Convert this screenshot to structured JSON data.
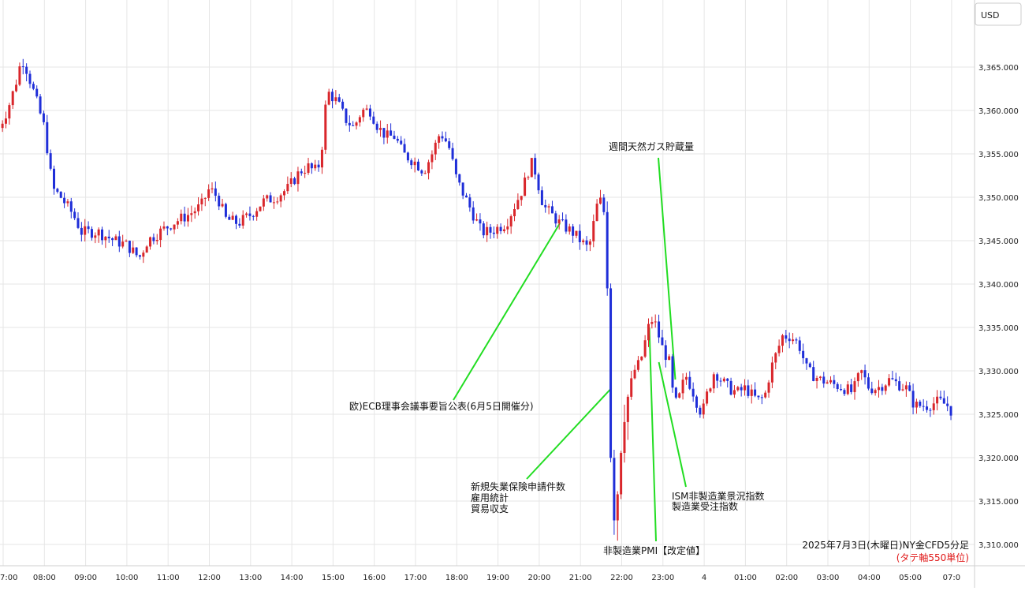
{
  "chart_data": {
    "type": "candlestick",
    "title": "2025年7月3日(木曜日)NY金CFD5分足",
    "subtitle": "(タテ軸550単位)",
    "currency_label": "USD",
    "ylim": [
      3309,
      3371
    ],
    "y_ticks": [
      "3,365.000",
      "3,360.000",
      "3,355.000",
      "3,350.000",
      "3,345.000",
      "3,340.000",
      "3,335.000",
      "3,330.000",
      "3,325.000",
      "3,320.000",
      "3,315.000",
      "3,310.000"
    ],
    "y_tick_values": [
      3365,
      3360,
      3355,
      3350,
      3345,
      3340,
      3335,
      3330,
      3325,
      3320,
      3315,
      3310
    ],
    "x_ticks": [
      "7:00",
      "08:00",
      "09:00",
      "10:00",
      "11:00",
      "12:00",
      "13:00",
      "14:00",
      "15:00",
      "16:00",
      "17:00",
      "18:00",
      "19:00",
      "20:00",
      "21:00",
      "22:00",
      "23:00",
      "4",
      "01:00",
      "02:00",
      "03:00",
      "04:00",
      "05:00",
      "07:0"
    ],
    "x_tick_hours": [
      0,
      1,
      2,
      3,
      4,
      5,
      6,
      7,
      8,
      9,
      10,
      11,
      12,
      13,
      14,
      15,
      16,
      17,
      18,
      19,
      20,
      21,
      22,
      23
    ],
    "colors": {
      "up": "#d9262b",
      "down": "#1f2ed8",
      "annotation_line": "#22dd22",
      "grid": "#e6e6e6",
      "subtitle": "#e01818"
    },
    "anchors": [
      {
        "h": -0.1,
        "c": 3358
      },
      {
        "h": 0.1,
        "c": 3360
      },
      {
        "h": 0.3,
        "c": 3363
      },
      {
        "h": 0.45,
        "c": 3366
      },
      {
        "h": 0.55,
        "c": 3365
      },
      {
        "h": 0.75,
        "c": 3362
      },
      {
        "h": 1.0,
        "c": 3358
      },
      {
        "h": 1.2,
        "c": 3351
      },
      {
        "h": 1.4,
        "c": 3350
      },
      {
        "h": 1.7,
        "c": 3348
      },
      {
        "h": 1.9,
        "c": 3346
      },
      {
        "h": 2.3,
        "c": 3346
      },
      {
        "h": 2.7,
        "c": 3345
      },
      {
        "h": 3.0,
        "c": 3344.5
      },
      {
        "h": 3.3,
        "c": 3343
      },
      {
        "h": 3.5,
        "c": 3345
      },
      {
        "h": 3.8,
        "c": 3346
      },
      {
        "h": 4.1,
        "c": 3347
      },
      {
        "h": 4.5,
        "c": 3348
      },
      {
        "h": 4.8,
        "c": 3349
      },
      {
        "h": 5.0,
        "c": 3351
      },
      {
        "h": 5.2,
        "c": 3350
      },
      {
        "h": 5.4,
        "c": 3347.5
      },
      {
        "h": 5.7,
        "c": 3347
      },
      {
        "h": 6.0,
        "c": 3348
      },
      {
        "h": 6.3,
        "c": 3349.5
      },
      {
        "h": 6.6,
        "c": 3350
      },
      {
        "h": 6.9,
        "c": 3351
      },
      {
        "h": 7.2,
        "c": 3353
      },
      {
        "h": 7.4,
        "c": 3353.5
      },
      {
        "h": 7.55,
        "c": 3353
      },
      {
        "h": 7.7,
        "c": 3354
      },
      {
        "h": 7.8,
        "c": 3360
      },
      {
        "h": 7.9,
        "c": 3362
      },
      {
        "h": 8.1,
        "c": 3361
      },
      {
        "h": 8.3,
        "c": 3359
      },
      {
        "h": 8.5,
        "c": 3358
      },
      {
        "h": 8.7,
        "c": 3360
      },
      {
        "h": 8.9,
        "c": 3360
      },
      {
        "h": 9.1,
        "c": 3358
      },
      {
        "h": 9.3,
        "c": 3357
      },
      {
        "h": 9.5,
        "c": 3357
      },
      {
        "h": 9.7,
        "c": 3355
      },
      {
        "h": 10.0,
        "c": 3354
      },
      {
        "h": 10.2,
        "c": 3353
      },
      {
        "h": 10.4,
        "c": 3355
      },
      {
        "h": 10.6,
        "c": 3357.5
      },
      {
        "h": 10.8,
        "c": 3356
      },
      {
        "h": 11.0,
        "c": 3352
      },
      {
        "h": 11.2,
        "c": 3350
      },
      {
        "h": 11.4,
        "c": 3348
      },
      {
        "h": 11.6,
        "c": 3346
      },
      {
        "h": 11.8,
        "c": 3346
      },
      {
        "h": 12.0,
        "c": 3346.5
      },
      {
        "h": 12.2,
        "c": 3347
      },
      {
        "h": 12.4,
        "c": 3349
      },
      {
        "h": 12.6,
        "c": 3351
      },
      {
        "h": 12.8,
        "c": 3354
      },
      {
        "h": 12.9,
        "c": 3353
      },
      {
        "h": 13.0,
        "c": 3351
      },
      {
        "h": 13.1,
        "c": 3349
      },
      {
        "h": 13.3,
        "c": 3348
      },
      {
        "h": 13.5,
        "c": 3347
      },
      {
        "h": 13.8,
        "c": 3346
      },
      {
        "h": 14.0,
        "c": 3345
      },
      {
        "h": 14.2,
        "c": 3344
      },
      {
        "h": 14.4,
        "c": 3349
      },
      {
        "h": 14.55,
        "c": 3350
      },
      {
        "h": 14.65,
        "c": 3340
      },
      {
        "h": 14.7,
        "c": 3325
      },
      {
        "h": 14.75,
        "c": 3318
      },
      {
        "h": 14.82,
        "c": 3313
      },
      {
        "h": 14.9,
        "c": 3316
      },
      {
        "h": 15.0,
        "c": 3322
      },
      {
        "h": 15.1,
        "c": 3326
      },
      {
        "h": 15.2,
        "c": 3328
      },
      {
        "h": 15.3,
        "c": 3330
      },
      {
        "h": 15.45,
        "c": 3331
      },
      {
        "h": 15.55,
        "c": 3333
      },
      {
        "h": 15.65,
        "c": 3335
      },
      {
        "h": 15.75,
        "c": 3336
      },
      {
        "h": 15.85,
        "c": 3335
      },
      {
        "h": 15.95,
        "c": 3333
      },
      {
        "h": 16.05,
        "c": 3332
      },
      {
        "h": 16.15,
        "c": 3331
      },
      {
        "h": 16.25,
        "c": 3327
      },
      {
        "h": 16.35,
        "c": 3326
      },
      {
        "h": 16.45,
        "c": 3328
      },
      {
        "h": 16.55,
        "c": 3329.5
      },
      {
        "h": 16.7,
        "c": 3328
      },
      {
        "h": 16.85,
        "c": 3326
      },
      {
        "h": 16.95,
        "c": 3325
      },
      {
        "h": 17.05,
        "c": 3327
      },
      {
        "h": 17.25,
        "c": 3330
      },
      {
        "h": 17.4,
        "c": 3329
      },
      {
        "h": 17.6,
        "c": 3328
      },
      {
        "h": 17.8,
        "c": 3327.5
      },
      {
        "h": 18.0,
        "c": 3328
      },
      {
        "h": 18.2,
        "c": 3327
      },
      {
        "h": 18.35,
        "c": 3326.5
      },
      {
        "h": 18.5,
        "c": 3327.5
      },
      {
        "h": 18.6,
        "c": 3330
      },
      {
        "h": 18.75,
        "c": 3332
      },
      {
        "h": 18.9,
        "c": 3334
      },
      {
        "h": 19.1,
        "c": 3334
      },
      {
        "h": 19.3,
        "c": 3333
      },
      {
        "h": 19.5,
        "c": 3330
      },
      {
        "h": 19.8,
        "c": 3329
      },
      {
        "h": 20.1,
        "c": 3328.5
      },
      {
        "h": 20.4,
        "c": 3328
      },
      {
        "h": 20.6,
        "c": 3327.5
      },
      {
        "h": 20.8,
        "c": 3330
      },
      {
        "h": 21.0,
        "c": 3328
      },
      {
        "h": 21.2,
        "c": 3328
      },
      {
        "h": 21.5,
        "c": 3329
      },
      {
        "h": 21.7,
        "c": 3328.5
      },
      {
        "h": 21.9,
        "c": 3328
      },
      {
        "h": 22.1,
        "c": 3326
      },
      {
        "h": 22.4,
        "c": 3326
      },
      {
        "h": 22.7,
        "c": 3326.5
      },
      {
        "h": 22.9,
        "c": 3326
      },
      {
        "h": 23.05,
        "c": 3325
      }
    ],
    "annotations": [
      {
        "text": "週間天然ガス貯蔵量",
        "h": 16.3,
        "v": 3329
      },
      {
        "text": "欧)ECB理事会議事要旨公表(6月5日開催分)",
        "h": 13.5,
        "v": 3347
      },
      {
        "text": "新規失業保険申請件数",
        "h": 14.75,
        "v": 3328
      },
      {
        "text": "雇用統計",
        "h": 14.75,
        "v": 3328
      },
      {
        "text": "貿易収支",
        "h": 14.75,
        "v": 3328
      },
      {
        "text": "ISM非製造業景況指数",
        "h": 15.9,
        "v": 3331
      },
      {
        "text": "製造業受注指数",
        "h": 15.9,
        "v": 3331
      },
      {
        "text": "非製造業PMI【改定値】",
        "h": 15.67,
        "v": 3335
      }
    ]
  }
}
